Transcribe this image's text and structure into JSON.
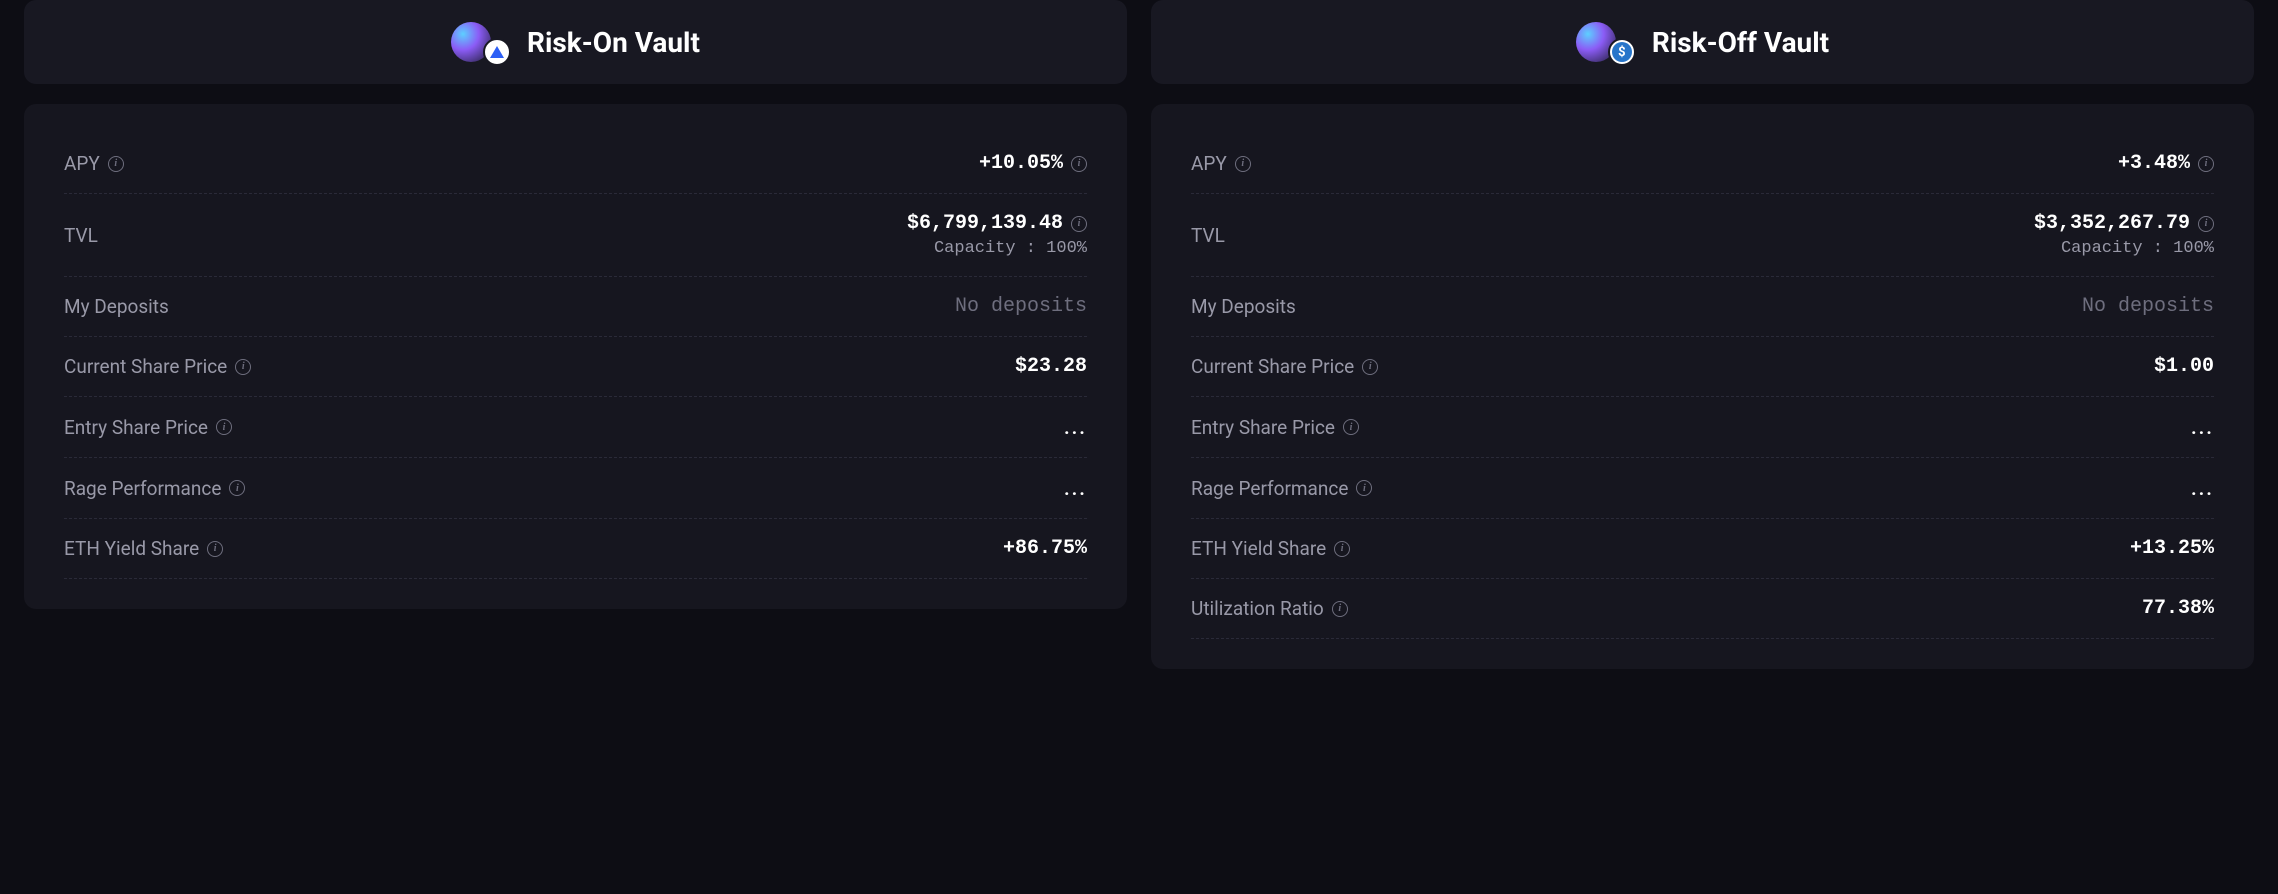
{
  "vaults": [
    {
      "title": "Risk-On Vault",
      "asset_icon_type": "arb",
      "stats": {
        "apy": {
          "label": "APY",
          "value": "+10.05%",
          "has_label_info": true,
          "has_value_info": true
        },
        "tvl": {
          "label": "TVL",
          "value": "$6,799,139.48",
          "capacity": "Capacity : 100%",
          "has_value_info": true
        },
        "deposits": {
          "label": "My Deposits",
          "value": "No deposits",
          "muted": true
        },
        "current_price": {
          "label": "Current Share Price",
          "value": "$23.28",
          "has_label_info": true
        },
        "entry_price": {
          "label": "Entry Share Price",
          "value": "...",
          "has_label_info": true,
          "dots": true
        },
        "rage_perf": {
          "label": "Rage Performance",
          "value": "...",
          "has_label_info": true,
          "dots": true
        },
        "eth_yield": {
          "label": "ETH Yield Share",
          "value": "+86.75%",
          "has_label_info": true
        }
      }
    },
    {
      "title": "Risk-Off Vault",
      "asset_icon_type": "usdc",
      "stats": {
        "apy": {
          "label": "APY",
          "value": "+3.48%",
          "has_label_info": true,
          "has_value_info": true
        },
        "tvl": {
          "label": "TVL",
          "value": "$3,352,267.79",
          "capacity": "Capacity : 100%",
          "has_value_info": true
        },
        "deposits": {
          "label": "My Deposits",
          "value": "No deposits",
          "muted": true
        },
        "current_price": {
          "label": "Current Share Price",
          "value": "$1.00",
          "has_label_info": true
        },
        "entry_price": {
          "label": "Entry Share Price",
          "value": "...",
          "has_label_info": true,
          "dots": true
        },
        "rage_perf": {
          "label": "Rage Performance",
          "value": "...",
          "has_label_info": true,
          "dots": true
        },
        "eth_yield": {
          "label": "ETH Yield Share",
          "value": "+13.25%",
          "has_label_info": true
        },
        "utilization": {
          "label": "Utilization Ratio",
          "value": "77.38%",
          "has_label_info": true
        }
      }
    }
  ],
  "colors": {
    "background": "#0d0d14",
    "card_header_bg": "#181822",
    "card_body_bg": "#16161f",
    "text_primary": "#ffffff",
    "text_label": "#9999a8",
    "text_muted": "#6e6e7e",
    "divider": "#2a2a38"
  }
}
